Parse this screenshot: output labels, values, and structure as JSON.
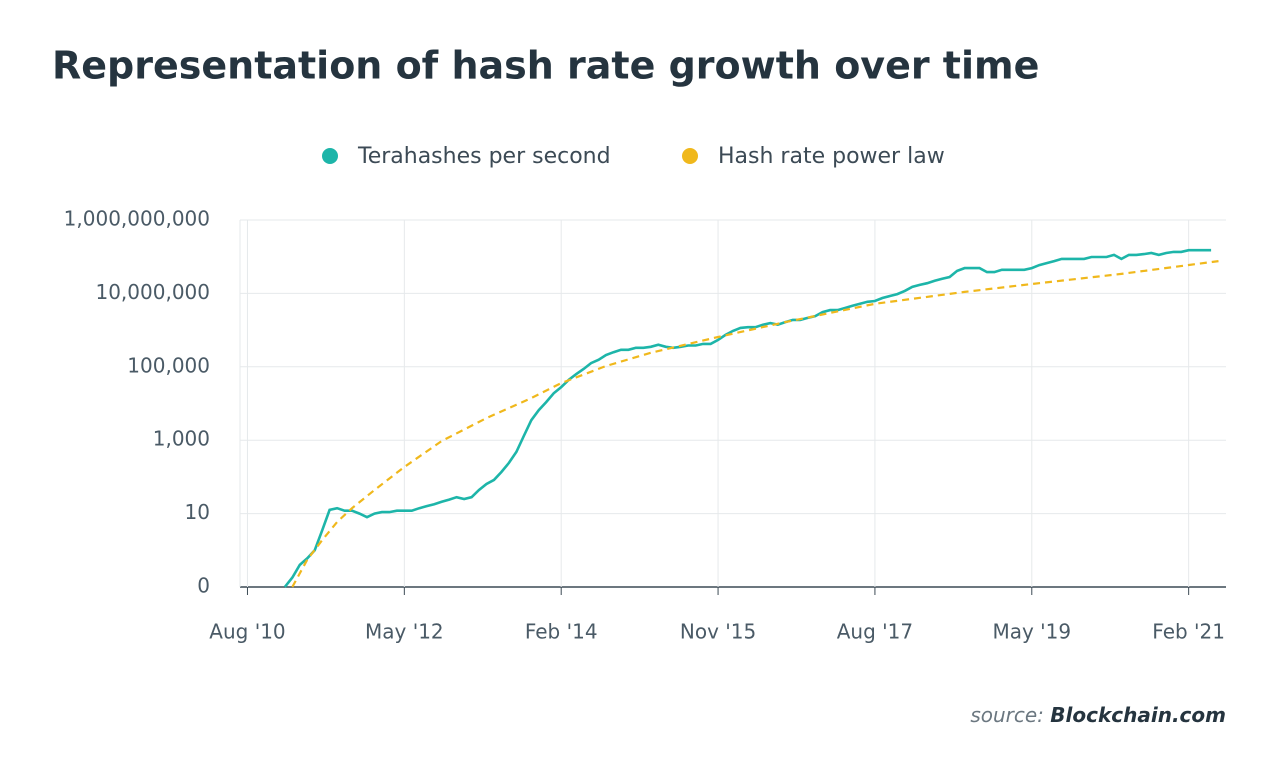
{
  "chart_data": {
    "type": "line",
    "title": "Representation of hash rate growth over time",
    "source_label": "source:",
    "source": "Blockchain.com",
    "log_scale_y": true,
    "grid": true,
    "legend": "top",
    "xlim": [
      "2010-07",
      "2021-07"
    ],
    "xticks": [
      {
        "value": "2010-08",
        "label": "Aug '10"
      },
      {
        "value": "2012-05",
        "label": "May '12"
      },
      {
        "value": "2014-02",
        "label": "Feb '14"
      },
      {
        "value": "2015-11",
        "label": "Nov '15"
      },
      {
        "value": "2017-08",
        "label": "Aug '17"
      },
      {
        "value": "2019-05",
        "label": "May '19"
      },
      {
        "value": "2021-02",
        "label": "Feb '21"
      }
    ],
    "ylim": [
      0.1,
      1000000000
    ],
    "yticks": [
      {
        "value": 0.1,
        "label": "0"
      },
      10,
      {
        "value": 1000,
        "label": "1,000"
      },
      {
        "value": 100000,
        "label": "100,000"
      },
      {
        "value": 10000000,
        "label": "10,000,000"
      },
      {
        "value": 1000000000,
        "label": "1,000,000,000"
      }
    ],
    "series": [
      {
        "name": "Terahashes per second",
        "color": "#1db5a9",
        "dashed": false,
        "x": [
          "2011-01",
          "2011-02",
          "2011-03",
          "2011-04",
          "2011-05",
          "2011-06",
          "2011-07",
          "2011-08",
          "2011-09",
          "2011-10",
          "2011-11",
          "2011-12",
          "2012-01",
          "2012-02",
          "2012-03",
          "2012-04",
          "2012-05",
          "2012-06",
          "2012-07",
          "2012-08",
          "2012-09",
          "2012-10",
          "2012-11",
          "2012-12",
          "2013-01",
          "2013-02",
          "2013-03",
          "2013-04",
          "2013-05",
          "2013-06",
          "2013-07",
          "2013-08",
          "2013-09",
          "2013-10",
          "2013-11",
          "2013-12",
          "2014-01",
          "2014-02",
          "2014-03",
          "2014-04",
          "2014-05",
          "2014-06",
          "2014-07",
          "2014-08",
          "2014-09",
          "2014-10",
          "2014-11",
          "2014-12",
          "2015-01",
          "2015-02",
          "2015-03",
          "2015-04",
          "2015-05",
          "2015-06",
          "2015-07",
          "2015-08",
          "2015-09",
          "2015-10",
          "2015-11",
          "2015-12",
          "2016-01",
          "2016-02",
          "2016-03",
          "2016-04",
          "2016-05",
          "2016-06",
          "2016-07",
          "2016-08",
          "2016-09",
          "2016-10",
          "2016-11",
          "2016-12",
          "2017-01",
          "2017-02",
          "2017-03",
          "2017-04",
          "2017-05",
          "2017-06",
          "2017-07",
          "2017-08",
          "2017-09",
          "2017-10",
          "2017-11",
          "2017-12",
          "2018-01",
          "2018-02",
          "2018-03",
          "2018-04",
          "2018-05",
          "2018-06",
          "2018-07",
          "2018-08",
          "2018-09",
          "2018-10",
          "2018-11",
          "2018-12",
          "2019-01",
          "2019-02",
          "2019-03",
          "2019-04",
          "2019-05",
          "2019-06",
          "2019-07",
          "2019-08",
          "2019-09",
          "2019-10",
          "2019-11",
          "2019-12",
          "2020-01",
          "2020-02",
          "2020-03",
          "2020-04",
          "2020-05",
          "2020-06",
          "2020-07",
          "2020-08",
          "2020-09",
          "2020-10",
          "2020-11",
          "2020-12",
          "2021-01",
          "2021-02",
          "2021-03",
          "2021-04",
          "2021-05"
        ],
        "values": [
          0.1,
          0.18,
          0.4,
          0.6,
          1,
          3.5,
          12.6,
          14,
          12,
          12,
          10,
          8,
          10,
          11,
          11,
          12,
          12,
          12,
          14,
          16,
          18,
          21,
          24,
          28,
          25,
          28,
          44,
          64,
          83,
          136,
          240,
          480,
          1300,
          3500,
          6600,
          11000,
          19000,
          28000,
          44000,
          63000,
          87000,
          126000,
          155000,
          210000,
          250000,
          290000,
          290000,
          330000,
          330000,
          350000,
          400000,
          350000,
          330000,
          350000,
          380000,
          380000,
          420000,
          420000,
          540000,
          740000,
          950000,
          1150000,
          1200000,
          1200000,
          1400000,
          1550000,
          1400000,
          1650000,
          1900000,
          1900000,
          2150000,
          2400000,
          3100000,
          3500000,
          3500000,
          4000000,
          4600000,
          5200000,
          5900000,
          6200000,
          7500000,
          8500000,
          9600000,
          11700000,
          15000000,
          17000000,
          19000000,
          22000000,
          25000000,
          28000000,
          41000000,
          49000000,
          49000000,
          49000000,
          38000000,
          38000000,
          44000000,
          44000000,
          44000000,
          44000000,
          49000000,
          59000000,
          67000000,
          76000000,
          87000000,
          87000000,
          87000000,
          87000000,
          98000000,
          98000000,
          98000000,
          112000000,
          87000000,
          112000000,
          112000000,
          118000000,
          126000000,
          112000000,
          126000000,
          135000000,
          135000000,
          150000000,
          150000000,
          150000000,
          150000000
        ]
      },
      {
        "name": "Hash rate power law",
        "color": "#f0b81c",
        "dashed": true,
        "x": [
          "2011-02",
          "2011-04",
          "2011-06",
          "2011-08",
          "2011-10",
          "2012-01",
          "2012-05",
          "2012-10",
          "2013-04",
          "2013-10",
          "2014-02",
          "2014-08",
          "2015-02",
          "2015-11",
          "2016-08",
          "2017-08",
          "2018-08",
          "2019-05",
          "2020-05",
          "2021-06"
        ],
        "values": [
          0.1,
          0.55,
          1.9,
          5.9,
          14,
          44,
          186,
          950,
          4000,
          14000,
          36000,
          105000,
          240000,
          650000,
          1650000,
          5200000,
          11000000,
          18000000,
          34000000,
          76000000
        ]
      }
    ]
  }
}
